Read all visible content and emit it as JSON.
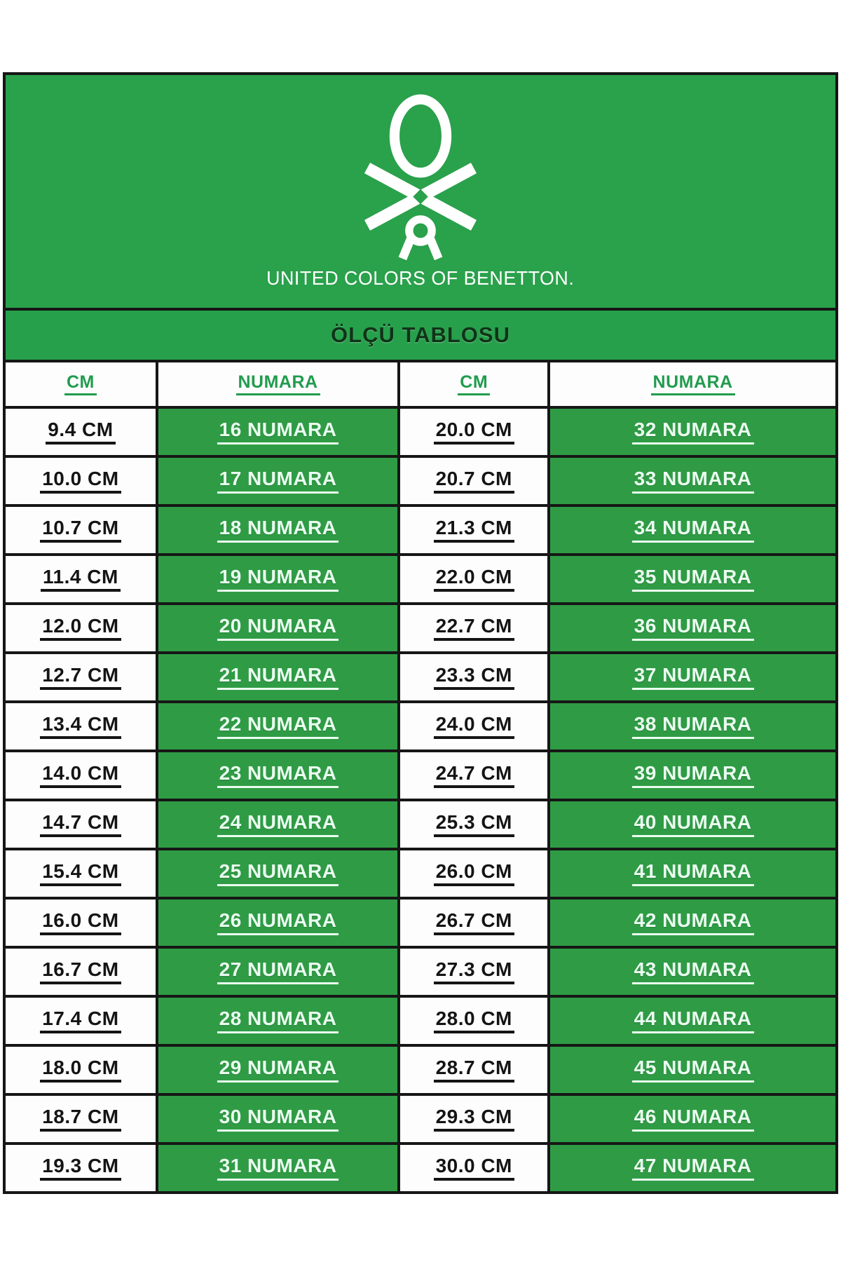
{
  "brand": {
    "logo": "benetton-knot-icon",
    "wordmark": "UNITED COLORS OF BENETTON."
  },
  "title": "ÖLÇÜ TABLOSU",
  "table": {
    "headers": [
      "CM",
      "NUMARA",
      "CM",
      "NUMARA"
    ],
    "rows": [
      [
        "9.4 CM",
        "16 NUMARA",
        "20.0 CM",
        "32 NUMARA"
      ],
      [
        "10.0 CM",
        "17 NUMARA",
        "20.7 CM",
        "33 NUMARA"
      ],
      [
        "10.7 CM",
        "18 NUMARA",
        "21.3 CM",
        "34 NUMARA"
      ],
      [
        "11.4 CM",
        "19 NUMARA",
        "22.0 CM",
        "35 NUMARA"
      ],
      [
        "12.0 CM",
        "20 NUMARA",
        "22.7 CM",
        "36 NUMARA"
      ],
      [
        "12.7 CM",
        "21 NUMARA",
        "23.3 CM",
        "37 NUMARA"
      ],
      [
        "13.4 CM",
        "22 NUMARA",
        "24.0 CM",
        "38 NUMARA"
      ],
      [
        "14.0 CM",
        "23 NUMARA",
        "24.7 CM",
        "39 NUMARA"
      ],
      [
        "14.7 CM",
        "24 NUMARA",
        "25.3 CM",
        "40 NUMARA"
      ],
      [
        "15.4 CM",
        "25 NUMARA",
        "26.0 CM",
        "41 NUMARA"
      ],
      [
        "16.0 CM",
        "26 NUMARA",
        "26.7 CM",
        "42 NUMARA"
      ],
      [
        "16.7 CM",
        "27 NUMARA",
        "27.3 CM",
        "43 NUMARA"
      ],
      [
        "17.4 CM",
        "28 NUMARA",
        "28.0 CM",
        "44 NUMARA"
      ],
      [
        "18.0 CM",
        "29 NUMARA",
        "28.7 CM",
        "45 NUMARA"
      ],
      [
        "18.7 CM",
        "30 NUMARA",
        "29.3 CM",
        "46 NUMARA"
      ],
      [
        "19.3 CM",
        "31 NUMARA",
        "30.0 CM",
        "47 NUMARA"
      ]
    ]
  },
  "colors": {
    "brand_green": "#2aa14b",
    "band_green": "#27a04c",
    "cell_green": "#2f9c45",
    "border_black": "#161616",
    "header_text_green": "#219c4e",
    "numara_text": "#eafdf0",
    "cm_text": "#141414",
    "title_text": "#0f3418"
  }
}
